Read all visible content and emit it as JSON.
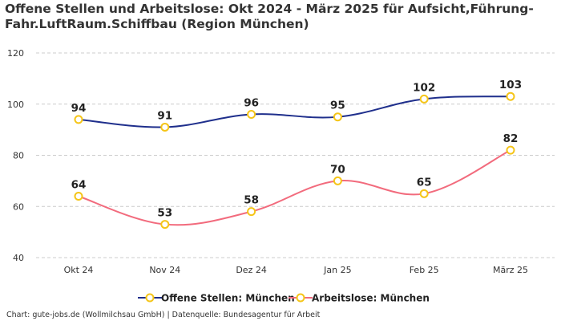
{
  "title": "Offene Stellen und Arbeitslose: Okt 2024 - März 2025 für Aufsicht,Führung-Fahr.LuftRaum.Schiffbau (Region München)",
  "footer": "Chart: gute-jobs.de (Wollmilchsau GmbH) | Datenquelle: Bundesagentur für Arbeit",
  "chart_data": {
    "type": "line",
    "title": "Offene Stellen und Arbeitslose: Okt 2024 - März 2025 für Aufsicht,Führung-Fahr.LuftRaum.Schiffbau (Region München)",
    "categories": [
      "Okt 24",
      "Nov 24",
      "Dez 24",
      "Jan 25",
      "Feb 25",
      "März 25"
    ],
    "series": [
      {
        "name": "Offene Stellen: München",
        "color": "#1f2f8c",
        "values": [
          94,
          91,
          96,
          95,
          102,
          103
        ]
      },
      {
        "name": "Arbeitslose: München",
        "color": "#f26b7d",
        "values": [
          64,
          53,
          58,
          70,
          65,
          82
        ]
      }
    ],
    "yticks": [
      40,
      60,
      80,
      100,
      120
    ],
    "ylim": [
      40,
      120
    ],
    "grid": true,
    "legend": "bottom",
    "marker_color": "#f5c518",
    "xlabel": "",
    "ylabel": ""
  }
}
